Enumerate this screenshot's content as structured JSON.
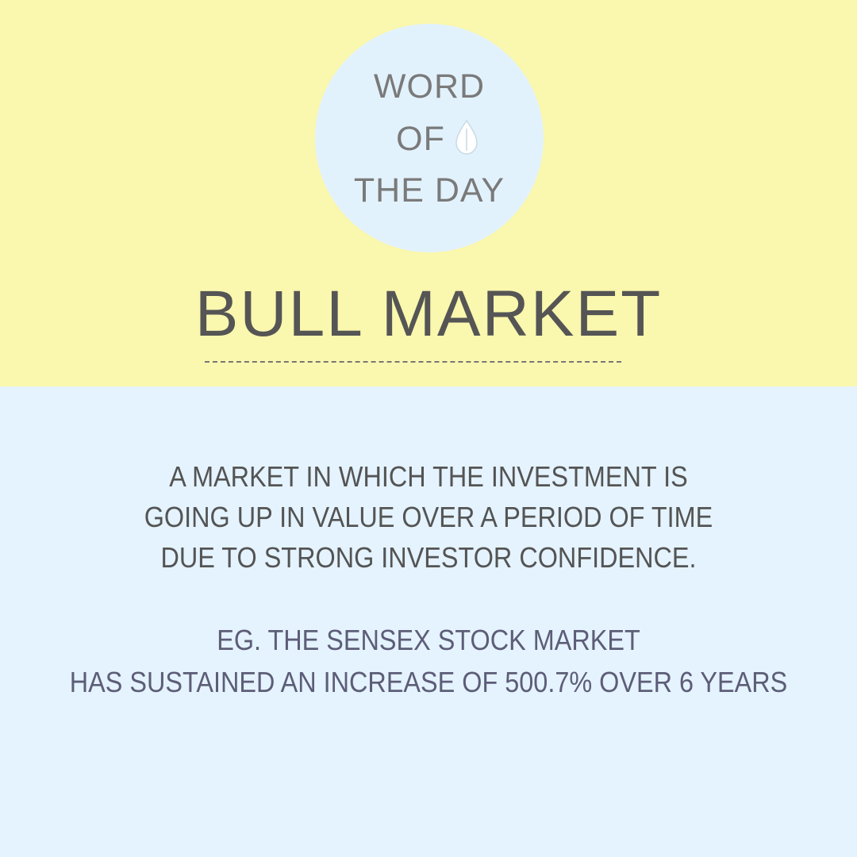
{
  "colors": {
    "top_background": "#faf7ae",
    "bottom_background": "#e4f3fd",
    "badge_background": "#e2f2fd",
    "badge_text": "#7a7a7a",
    "title_text": "#555555",
    "definition_text": "#545454",
    "example_text": "#5d5d78",
    "dash_color": "#777777"
  },
  "badge": {
    "line1": "WORD",
    "line2": "OF",
    "line3": "THE DAY",
    "icon": "leaf-drop-icon"
  },
  "term": "BULL MARKET",
  "definition": [
    "A MARKET IN WHICH THE INVESTMENT IS",
    "GOING UP IN VALUE OVER A PERIOD OF TIME",
    "DUE TO STRONG INVESTOR CONFIDENCE."
  ],
  "example": [
    "EG. THE SENSEX STOCK MARKET",
    "HAS SUSTAINED AN INCREASE OF 500.7% OVER 6 YEARS"
  ]
}
